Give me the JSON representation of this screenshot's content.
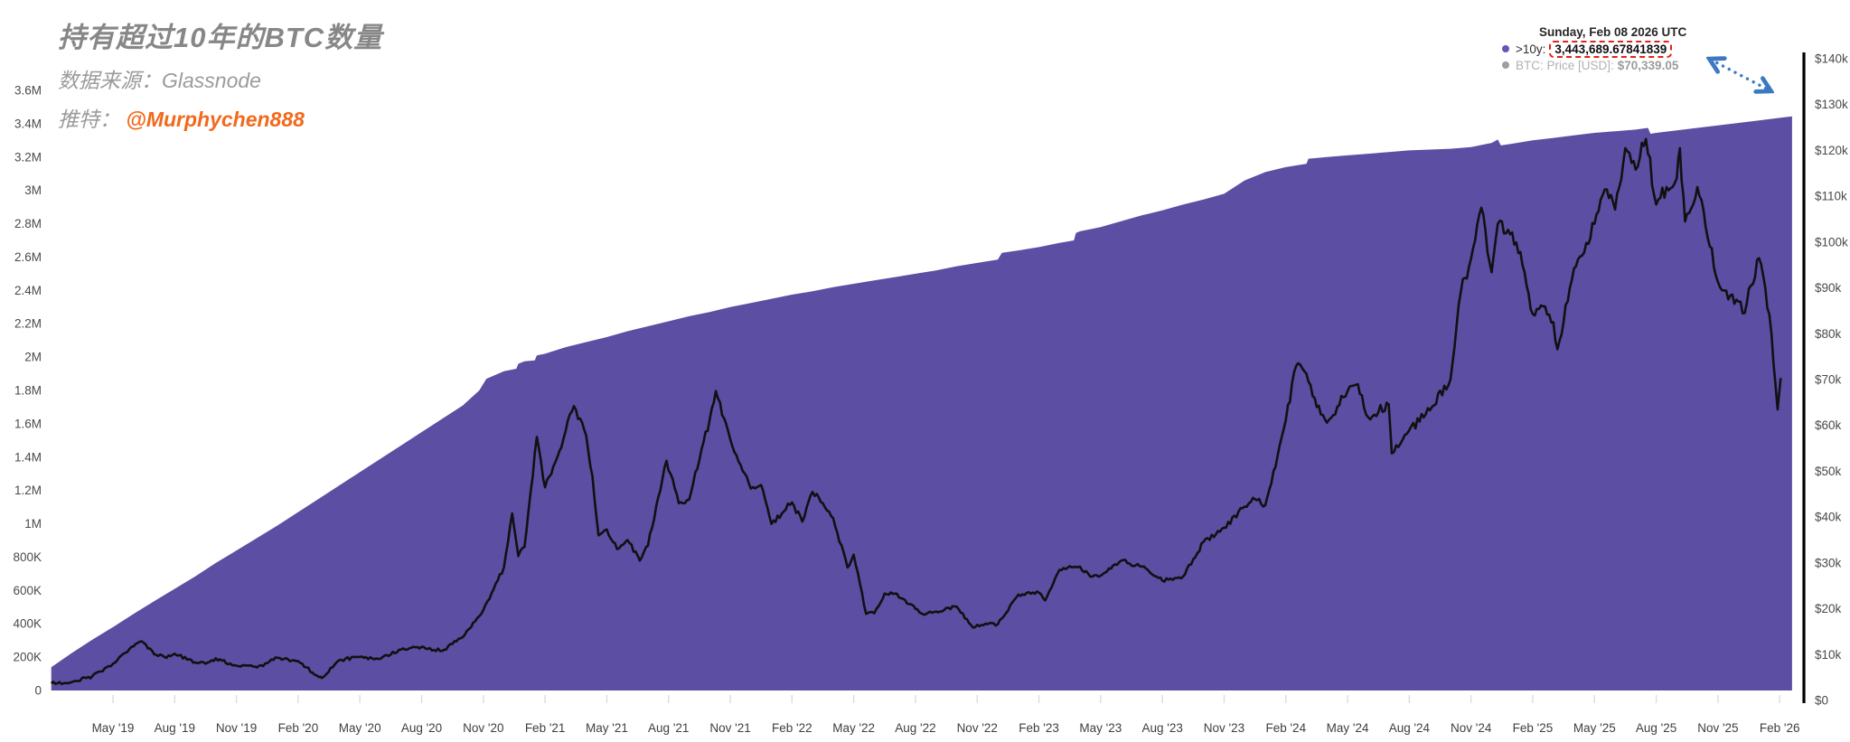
{
  "header": {
    "title": "持有超过10年的BTC数量",
    "source_line": "数据来源：Glassnode",
    "twitter_label": "推特：",
    "twitter_handle": "@Murphychen888"
  },
  "legend": {
    "date": "Sunday, Feb 08 2026 UTC",
    "series1_label": ">10y:",
    "series1_value": "3,443,689.67841839",
    "series2_label": "BTC: Price [USD]:",
    "series2_value": "$70,339.05"
  },
  "chart_data": {
    "type": "area",
    "title": "持有超过10年的BTC数量 (BTC supply last active more than 10 years ago)",
    "x_range": [
      "Feb 2019",
      "Feb 2026"
    ],
    "x_tick_labels": [
      "May '19",
      "Aug '19",
      "Nov '19",
      "Feb '20",
      "May '20",
      "Aug '20",
      "Nov '20",
      "Feb '21",
      "May '21",
      "Aug '21",
      "Nov '21",
      "Feb '22",
      "May '22",
      "Aug '22",
      "Nov '22",
      "Feb '23",
      "May '23",
      "Aug '23",
      "Nov '23",
      "Feb '24",
      "May '24",
      "Aug '24",
      "Nov '24",
      "Feb '25",
      "May '25",
      "Aug '25",
      "Nov '25",
      "Feb '26"
    ],
    "left_axis": {
      "unit": "BTC",
      "min": 0,
      "max": 3600000,
      "tick_labels": [
        "0",
        "200K",
        "400K",
        "600K",
        "800K",
        "1M",
        "1.2M",
        "1.4M",
        "1.6M",
        "1.8M",
        "2M",
        "2.2M",
        "2.4M",
        "2.6M",
        "2.8M",
        "3M",
        "3.2M",
        "3.4M",
        "3.6M"
      ]
    },
    "right_axis": {
      "unit": "USD",
      "min": 0,
      "max": 140000,
      "tick_labels": [
        "$0",
        "$10k",
        "$20k",
        "$30k",
        "$40k",
        "$50k",
        "$60k",
        "$70k",
        "$80k",
        "$90k",
        "$100k",
        "$110k",
        "$120k",
        "$130k",
        "$140k"
      ]
    },
    "grid": false,
    "legend_position": "top-right",
    "series": [
      {
        "name": ">10y BTC supply",
        "type": "area",
        "color": "#5c4ea3",
        "unit": "million BTC",
        "last_value": 3443689.67841839,
        "points_months_from_feb2019": [
          [
            0,
            0.14
          ],
          [
            1,
            0.225
          ],
          [
            2,
            0.305
          ],
          [
            3,
            0.38
          ],
          [
            4,
            0.46
          ],
          [
            5,
            0.535
          ],
          [
            6,
            0.61
          ],
          [
            7,
            0.685
          ],
          [
            8,
            0.765
          ],
          [
            9,
            0.84
          ],
          [
            10,
            0.915
          ],
          [
            11,
            0.99
          ],
          [
            12,
            1.07
          ],
          [
            13,
            1.15
          ],
          [
            14,
            1.23
          ],
          [
            15,
            1.31
          ],
          [
            16,
            1.39
          ],
          [
            17,
            1.47
          ],
          [
            18,
            1.55
          ],
          [
            19,
            1.63
          ],
          [
            20,
            1.71
          ],
          [
            20.8,
            1.8
          ],
          [
            21,
            1.84
          ],
          [
            21.15,
            1.87
          ],
          [
            22,
            1.915
          ],
          [
            22.6,
            1.93
          ],
          [
            22.7,
            1.96
          ],
          [
            23,
            1.975
          ],
          [
            23.5,
            1.98
          ],
          [
            23.6,
            2.01
          ],
          [
            24,
            2.02
          ],
          [
            25,
            2.06
          ],
          [
            26,
            2.09
          ],
          [
            27,
            2.12
          ],
          [
            28,
            2.155
          ],
          [
            29,
            2.185
          ],
          [
            30,
            2.215
          ],
          [
            31,
            2.245
          ],
          [
            32,
            2.27
          ],
          [
            33,
            2.3
          ],
          [
            34,
            2.325
          ],
          [
            35,
            2.35
          ],
          [
            36,
            2.375
          ],
          [
            37,
            2.395
          ],
          [
            38,
            2.42
          ],
          [
            39,
            2.44
          ],
          [
            40,
            2.46
          ],
          [
            41,
            2.48
          ],
          [
            42,
            2.5
          ],
          [
            43,
            2.52
          ],
          [
            44,
            2.545
          ],
          [
            45,
            2.565
          ],
          [
            46,
            2.585
          ],
          [
            46.2,
            2.625
          ],
          [
            47,
            2.64
          ],
          [
            48,
            2.66
          ],
          [
            49,
            2.685
          ],
          [
            49.7,
            2.7
          ],
          [
            49.8,
            2.745
          ],
          [
            50,
            2.755
          ],
          [
            51,
            2.78
          ],
          [
            52,
            2.815
          ],
          [
            53,
            2.85
          ],
          [
            54,
            2.88
          ],
          [
            55,
            2.915
          ],
          [
            56,
            2.945
          ],
          [
            57,
            2.98
          ],
          [
            58,
            3.06
          ],
          [
            59,
            3.11
          ],
          [
            60,
            3.14
          ],
          [
            61,
            3.16
          ],
          [
            61.1,
            3.19
          ],
          [
            62,
            3.2
          ],
          [
            63,
            3.21
          ],
          [
            64,
            3.22
          ],
          [
            65,
            3.23
          ],
          [
            66,
            3.24
          ],
          [
            67,
            3.245
          ],
          [
            68,
            3.25
          ],
          [
            69,
            3.26
          ],
          [
            70,
            3.285
          ],
          [
            70.3,
            3.305
          ],
          [
            70.45,
            3.27
          ],
          [
            71,
            3.28
          ],
          [
            72,
            3.3
          ],
          [
            73,
            3.315
          ],
          [
            74,
            3.33
          ],
          [
            75,
            3.345
          ],
          [
            76,
            3.355
          ],
          [
            77,
            3.365
          ],
          [
            77.6,
            3.375
          ],
          [
            77.72,
            3.34
          ],
          [
            78,
            3.345
          ],
          [
            79,
            3.36
          ],
          [
            80,
            3.375
          ],
          [
            81,
            3.39
          ],
          [
            82,
            3.405
          ],
          [
            83,
            3.42
          ],
          [
            84,
            3.435
          ],
          [
            84.6,
            3.4437
          ]
        ]
      },
      {
        "name": "BTC: Price [USD]",
        "type": "line",
        "color": "#111111",
        "unit": "thousand USD",
        "last_value": 70339.05,
        "points_months_from_feb2019": [
          [
            0,
            3.7
          ],
          [
            1,
            4.0
          ],
          [
            2,
            5.3
          ],
          [
            3,
            8.0
          ],
          [
            4,
            11.8
          ],
          [
            4.4,
            12.9
          ],
          [
            5,
            10.1
          ],
          [
            5.5,
            9.5
          ],
          [
            6,
            10.2
          ],
          [
            7,
            8.3
          ],
          [
            7.5,
            8.0
          ],
          [
            8,
            9.2
          ],
          [
            9,
            7.6
          ],
          [
            10,
            7.2
          ],
          [
            11,
            9.3
          ],
          [
            12,
            8.6
          ],
          [
            13,
            5.1
          ],
          [
            13.15,
            4.9
          ],
          [
            14,
            8.8
          ],
          [
            15,
            9.5
          ],
          [
            16,
            9.1
          ],
          [
            17,
            11.1
          ],
          [
            18,
            11.7
          ],
          [
            19,
            10.8
          ],
          [
            20,
            13.8
          ],
          [
            21,
            19.7
          ],
          [
            22,
            29.0
          ],
          [
            22.4,
            40.8
          ],
          [
            22.7,
            31.5
          ],
          [
            23,
            33.5
          ],
          [
            23.6,
            57.5
          ],
          [
            24,
            46.5
          ],
          [
            24.5,
            52.0
          ],
          [
            25,
            58.8
          ],
          [
            25.4,
            64.2
          ],
          [
            26,
            57.7
          ],
          [
            26.3,
            49.0
          ],
          [
            26.6,
            36.0
          ],
          [
            27,
            37.3
          ],
          [
            27.5,
            33.0
          ],
          [
            28,
            35.0
          ],
          [
            28.6,
            30.5
          ],
          [
            29,
            33.8
          ],
          [
            29.9,
            52.3
          ],
          [
            30.5,
            43.0
          ],
          [
            31,
            43.8
          ],
          [
            32,
            61.3
          ],
          [
            32.3,
            67.5
          ],
          [
            33,
            57.0
          ],
          [
            34,
            46.2
          ],
          [
            34.5,
            47.0
          ],
          [
            35,
            38.5
          ],
          [
            36,
            43.2
          ],
          [
            36.5,
            39.0
          ],
          [
            37,
            45.5
          ],
          [
            38,
            39.8
          ],
          [
            38.7,
            29.0
          ],
          [
            39,
            31.8
          ],
          [
            39.6,
            18.9
          ],
          [
            40,
            19.0
          ],
          [
            40.5,
            23.3
          ],
          [
            41,
            23.3
          ],
          [
            42,
            20.0
          ],
          [
            42.5,
            18.8
          ],
          [
            43,
            19.4
          ],
          [
            44,
            20.5
          ],
          [
            44.8,
            15.9
          ],
          [
            45,
            16.5
          ],
          [
            46,
            16.6
          ],
          [
            47,
            23.1
          ],
          [
            48,
            23.5
          ],
          [
            48.3,
            21.8
          ],
          [
            49,
            28.5
          ],
          [
            50,
            29.2
          ],
          [
            50.5,
            27.0
          ],
          [
            51,
            27.2
          ],
          [
            52,
            30.5
          ],
          [
            53,
            29.2
          ],
          [
            54,
            26.1
          ],
          [
            55,
            27.0
          ],
          [
            56,
            34.6
          ],
          [
            57,
            37.7
          ],
          [
            58,
            42.3
          ],
          [
            58.5,
            43.9
          ],
          [
            59,
            42.6
          ],
          [
            59.5,
            51.0
          ],
          [
            60,
            61.2
          ],
          [
            60.5,
            73.0
          ],
          [
            61,
            71.3
          ],
          [
            61.5,
            64.0
          ],
          [
            62,
            60.6
          ],
          [
            63,
            67.5
          ],
          [
            63.5,
            69.0
          ],
          [
            64,
            61.8
          ],
          [
            65,
            64.6
          ],
          [
            65.15,
            53.9
          ],
          [
            66,
            59.0
          ],
          [
            67,
            63.3
          ],
          [
            68,
            70.0
          ],
          [
            68.5,
            89.0
          ],
          [
            69,
            96.4
          ],
          [
            69.5,
            107.5
          ],
          [
            70,
            93.4
          ],
          [
            70.3,
            104.0
          ],
          [
            71,
            102.1
          ],
          [
            71.5,
            95.0
          ],
          [
            72,
            84.3
          ],
          [
            72.5,
            86.0
          ],
          [
            73,
            82.5
          ],
          [
            73.2,
            76.6
          ],
          [
            74,
            94.2
          ],
          [
            75,
            104.0
          ],
          [
            75.5,
            111.5
          ],
          [
            76,
            107.1
          ],
          [
            76.5,
            120.5
          ],
          [
            77,
            115.8
          ],
          [
            77.5,
            122.5
          ],
          [
            78,
            108.2
          ],
          [
            78.5,
            112.0
          ],
          [
            79,
            114.0
          ],
          [
            79.15,
            120.5
          ],
          [
            79.4,
            104.5
          ],
          [
            80,
            112.0
          ],
          [
            80.5,
            101.0
          ],
          [
            81,
            91.3
          ],
          [
            81.5,
            87.5
          ],
          [
            82,
            87.0
          ],
          [
            82.3,
            84.5
          ],
          [
            82.6,
            90.5
          ],
          [
            83,
            96.5
          ],
          [
            83.3,
            90.0
          ],
          [
            83.6,
            80.0
          ],
          [
            83.9,
            63.5
          ],
          [
            84.05,
            70.339
          ]
        ]
      }
    ],
    "annotation": {
      "highlight_box_color": "#e3201b",
      "arrow_color": "#3d79c0",
      "arrow_from": "legend >10y value",
      "arrow_to": "right end of supply area"
    }
  }
}
